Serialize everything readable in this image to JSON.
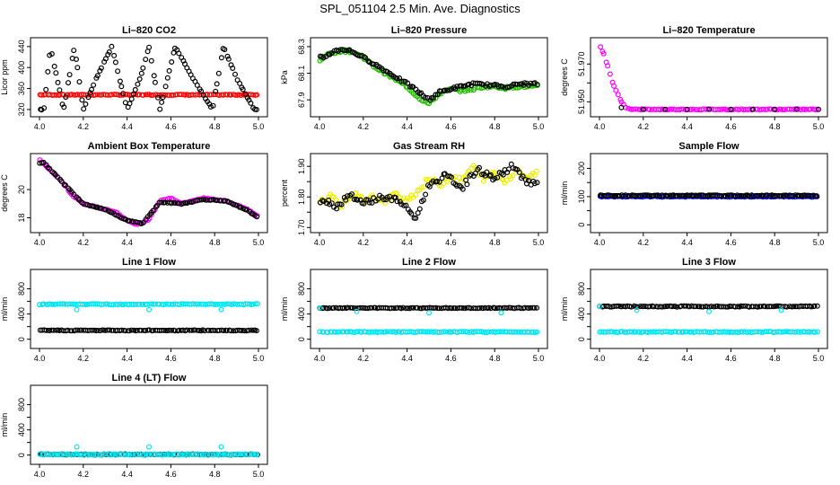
{
  "page_title": "SPL_051104  2.5 Min. Ave. Diagnostics",
  "chart_data": [
    {
      "type": "scatter",
      "title": "Li–820 CO2",
      "xlabel": "",
      "ylabel": "Licor ppm",
      "xlim": [
        4.0,
        5.0
      ],
      "ylim": [
        313,
        450
      ],
      "xticks": [
        4.0,
        4.2,
        4.4,
        4.6,
        4.8,
        5.0
      ],
      "yticks": [
        320,
        360,
        400,
        440
      ],
      "series": [
        {
          "color": "#ff0000",
          "x": [
            4.0,
            5.0
          ],
          "y": [
            348,
            348
          ]
        },
        {
          "color": "#000000",
          "x": [
            4.02,
            4.05,
            4.08,
            4.11,
            4.16,
            4.2,
            4.26,
            4.33,
            4.4,
            4.46,
            4.5,
            4.55,
            4.62,
            4.7,
            4.79,
            4.84,
            4.9,
            4.98
          ],
          "y": [
            320,
            440,
            380,
            320,
            440,
            320,
            380,
            440,
            320,
            380,
            440,
            320,
            440,
            380,
            320,
            440,
            380,
            320
          ]
        }
      ]
    },
    {
      "type": "scatter",
      "title": "Li–820 Pressure",
      "xlabel": "",
      "ylabel": "kPa",
      "xlim": [
        4.0,
        5.0
      ],
      "ylim": [
        67.8,
        68.34
      ],
      "xticks": [
        4.0,
        4.2,
        4.4,
        4.6,
        4.8,
        5.0
      ],
      "yticks": [
        67.9,
        68.1,
        68.3
      ],
      "series": [
        {
          "color": "#22bb00",
          "x": [
            4.0,
            4.05,
            4.1,
            4.15,
            4.2,
            4.25,
            4.3,
            4.35,
            4.4,
            4.45,
            4.5,
            4.55,
            4.6,
            4.65,
            4.7,
            4.75,
            4.8,
            4.85,
            4.9,
            4.95,
            5.0
          ],
          "y": [
            68.2,
            68.25,
            68.27,
            68.26,
            68.22,
            68.15,
            68.1,
            68.05,
            68.0,
            67.92,
            67.87,
            67.95,
            67.98,
            67.97,
            67.98,
            68.0,
            68.0,
            67.99,
            68.0,
            68.0,
            68.0
          ]
        },
        {
          "color": "#000000",
          "x": [
            4.02,
            4.06,
            4.1,
            4.14,
            4.2,
            4.3,
            4.42,
            4.5,
            4.55,
            4.62,
            4.7,
            4.78,
            4.85,
            4.92,
            4.98
          ],
          "y": [
            68.22,
            68.26,
            68.28,
            68.27,
            68.22,
            68.12,
            68.0,
            67.9,
            67.96,
            67.99,
            68.02,
            68.01,
            68.0,
            68.02,
            68.02
          ]
        }
      ]
    },
    {
      "type": "scatter",
      "title": "Li–820 Temperature",
      "xlabel": "",
      "ylabel": "degrees C",
      "xlim": [
        4.0,
        5.0
      ],
      "ylim": [
        51.944,
        51.982
      ],
      "xticks": [
        4.0,
        4.2,
        4.4,
        4.6,
        4.8,
        5.0
      ],
      "yticks": [
        51.95,
        51.96,
        51.97
      ],
      "ytick_labels": [
        "51.950",
        "",
        "51.970"
      ],
      "series": [
        {
          "color": "#ff00ff",
          "x": [
            4.0,
            4.02,
            4.04,
            4.06,
            4.08,
            4.1,
            4.12,
            4.15,
            4.2,
            4.3,
            4.4,
            4.5,
            4.6,
            4.7,
            4.8,
            4.9,
            5.0
          ],
          "y": [
            51.98,
            51.975,
            51.968,
            51.96,
            51.955,
            51.95,
            51.947,
            51.946,
            51.946,
            51.946,
            51.946,
            51.946,
            51.946,
            51.946,
            51.946,
            51.946,
            51.946
          ]
        },
        {
          "color": "#000000",
          "x": [
            4.1,
            4.2,
            4.3,
            4.4,
            4.5,
            4.6,
            4.7,
            4.8,
            4.9,
            5.0
          ],
          "y": [
            51.947,
            51.946,
            51.946,
            51.946,
            51.946,
            51.946,
            51.946,
            51.946,
            51.946,
            51.946
          ]
        }
      ]
    },
    {
      "type": "scatter",
      "title": "Ambient Box Temperature",
      "xlabel": "",
      "ylabel": "degrees C",
      "xlim": [
        4.0,
        5.0
      ],
      "ylim": [
        17.2,
        22.3
      ],
      "xticks": [
        4.0,
        4.2,
        4.4,
        4.6,
        4.8,
        5.0
      ],
      "yticks": [
        18,
        20
      ],
      "series": [
        {
          "color": "#ff00ff",
          "x": [
            4.0,
            4.05,
            4.1,
            4.15,
            4.2,
            4.25,
            4.3,
            4.35,
            4.4,
            4.45,
            4.5,
            4.55,
            4.6,
            4.65,
            4.7,
            4.75,
            4.8,
            4.85,
            4.9,
            4.95,
            5.0
          ],
          "y": [
            22.1,
            21.4,
            20.6,
            19.6,
            19.0,
            18.8,
            18.6,
            18.4,
            17.8,
            17.5,
            17.9,
            19.2,
            19.4,
            19.0,
            19.2,
            19.4,
            19.3,
            19.2,
            18.9,
            18.6,
            18.1
          ]
        },
        {
          "color": "#000000",
          "x": [
            4.02,
            4.1,
            4.2,
            4.3,
            4.4,
            4.47,
            4.55,
            4.65,
            4.75,
            4.85,
            4.95,
            4.99
          ],
          "y": [
            21.9,
            20.6,
            19.0,
            18.6,
            17.8,
            17.6,
            19.1,
            19.0,
            19.3,
            19.2,
            18.5,
            18.1
          ]
        }
      ]
    },
    {
      "type": "scatter",
      "title": "Gas Stream RH",
      "xlabel": "",
      "ylabel": "percent",
      "xlim": [
        4.0,
        5.0
      ],
      "ylim": [
        1.695,
        1.93
      ],
      "xticks": [
        4.0,
        4.2,
        4.4,
        4.6,
        4.8,
        5.0
      ],
      "yticks": [
        1.7,
        1.75,
        1.8,
        1.85,
        1.9
      ],
      "ytick_labels": [
        "1.70",
        "",
        "1.80",
        "",
        "1.90"
      ],
      "series": [
        {
          "color": "#eeee00",
          "x": [
            4.0,
            4.05,
            4.1,
            4.15,
            4.2,
            4.25,
            4.3,
            4.35,
            4.4,
            4.45,
            4.5,
            4.55,
            4.6,
            4.65,
            4.7,
            4.75,
            4.8,
            4.85,
            4.9,
            4.95,
            5.0
          ],
          "y": [
            1.78,
            1.8,
            1.77,
            1.81,
            1.79,
            1.8,
            1.78,
            1.81,
            1.79,
            1.82,
            1.86,
            1.84,
            1.87,
            1.85,
            1.9,
            1.86,
            1.88,
            1.85,
            1.89,
            1.86,
            1.88
          ]
        },
        {
          "color": "#000000",
          "x": [
            4.02,
            4.08,
            4.14,
            4.2,
            4.28,
            4.36,
            4.44,
            4.5,
            4.58,
            4.65,
            4.72,
            4.8,
            4.88,
            4.95,
            5.0
          ],
          "y": [
            1.79,
            1.77,
            1.81,
            1.78,
            1.8,
            1.79,
            1.73,
            1.84,
            1.87,
            1.83,
            1.89,
            1.86,
            1.9,
            1.85,
            1.84
          ]
        }
      ]
    },
    {
      "type": "scatter",
      "title": "Sample Flow",
      "xlabel": "",
      "ylabel": "ml/min",
      "xlim": [
        4.0,
        5.0
      ],
      "ylim": [
        -15,
        240
      ],
      "xticks": [
        4.0,
        4.2,
        4.4,
        4.6,
        4.8,
        5.0
      ],
      "yticks": [
        0,
        50,
        100,
        150,
        200
      ],
      "ytick_labels": [
        "0",
        "",
        "100",
        "",
        "200"
      ],
      "series": [
        {
          "color": "#0000cc",
          "x": [
            4.0,
            5.0
          ],
          "y": [
            100,
            100
          ]
        },
        {
          "color": "#000000",
          "x": [
            4.0,
            5.0
          ],
          "y": [
            104,
            104
          ]
        }
      ]
    },
    {
      "type": "scatter",
      "title": "Line 1 Flow",
      "xlabel": "",
      "ylabel": "ml/min",
      "xlim": [
        4.0,
        5.0
      ],
      "ylim": [
        -90,
        1050
      ],
      "xticks": [
        4.0,
        4.2,
        4.4,
        4.6,
        4.8,
        5.0
      ],
      "yticks": [
        0,
        200,
        400,
        600,
        800
      ],
      "ytick_labels": [
        "0",
        "",
        "400",
        "",
        "800"
      ],
      "series": [
        {
          "color": "#00e5ee",
          "x": [
            4.0,
            5.0
          ],
          "y": [
            555,
            555
          ]
        },
        {
          "color": "#000000",
          "x": [
            4.0,
            5.0
          ],
          "y": [
            140,
            140
          ]
        },
        {
          "color": "#00e5ee",
          "x": [
            4.17,
            4.5,
            4.83
          ],
          "y": [
            470,
            470,
            470
          ]
        }
      ]
    },
    {
      "type": "scatter",
      "title": "Line 2 Flow",
      "xlabel": "",
      "ylabel": "ml/min",
      "xlim": [
        4.0,
        5.0
      ],
      "ylim": [
        -90,
        1050
      ],
      "xticks": [
        4.0,
        4.2,
        4.4,
        4.6,
        4.8,
        5.0
      ],
      "yticks": [
        0,
        200,
        400,
        600,
        800
      ],
      "ytick_labels": [
        "0",
        "",
        "400",
        "",
        "800"
      ],
      "series": [
        {
          "color": "#000000",
          "x": [
            4.0,
            5.0
          ],
          "y": [
            495,
            495
          ]
        },
        {
          "color": "#00e5ee",
          "x": [
            4.0,
            5.0
          ],
          "y": [
            115,
            115
          ]
        },
        {
          "color": "#00e5ee",
          "x": [
            4.0,
            4.17,
            4.5,
            4.83
          ],
          "y": [
            495,
            440,
            420,
            420
          ]
        }
      ]
    },
    {
      "type": "scatter",
      "title": "Line 3 Flow",
      "xlabel": "",
      "ylabel": "ml/min",
      "xlim": [
        4.0,
        5.0
      ],
      "ylim": [
        -90,
        1050
      ],
      "xticks": [
        4.0,
        4.2,
        4.4,
        4.6,
        4.8,
        5.0
      ],
      "yticks": [
        0,
        200,
        400,
        600,
        800
      ],
      "ytick_labels": [
        "0",
        "",
        "400",
        "",
        "800"
      ],
      "series": [
        {
          "color": "#000000",
          "x": [
            4.0,
            5.0
          ],
          "y": [
            520,
            520
          ]
        },
        {
          "color": "#00e5ee",
          "x": [
            4.0,
            5.0
          ],
          "y": [
            115,
            115
          ]
        },
        {
          "color": "#00e5ee",
          "x": [
            4.0,
            4.17,
            4.5,
            4.83
          ],
          "y": [
            520,
            460,
            440,
            460
          ]
        }
      ]
    },
    {
      "type": "scatter",
      "title": "Line 4 (LT) Flow",
      "xlabel": "",
      "ylabel": "ml/min",
      "xlim": [
        4.0,
        5.0
      ],
      "ylim": [
        -90,
        1050
      ],
      "xticks": [
        4.0,
        4.2,
        4.4,
        4.6,
        4.8,
        5.0
      ],
      "yticks": [
        0,
        200,
        400,
        600,
        800
      ],
      "ytick_labels": [
        "0",
        "",
        "400",
        "",
        "800"
      ],
      "series": [
        {
          "color": "#000000",
          "x": [
            4.0,
            5.0
          ],
          "y": [
            10,
            10
          ]
        },
        {
          "color": "#00e5ee",
          "x": [
            4.0,
            5.0
          ],
          "y": [
            10,
            10
          ]
        },
        {
          "color": "#00e5ee",
          "x": [
            4.17,
            4.5,
            4.83
          ],
          "y": [
            130,
            130,
            130
          ]
        }
      ]
    }
  ]
}
